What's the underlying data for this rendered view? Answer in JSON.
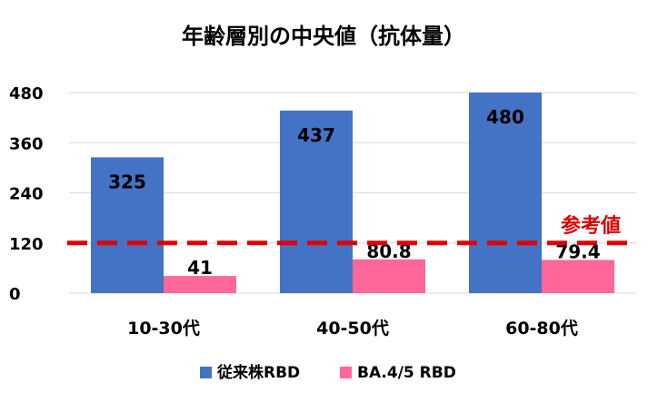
{
  "chart_data": {
    "type": "bar",
    "title": "年齢層別の中央値（抗体量）",
    "categories": [
      "10-30代",
      "40-50代",
      "60-80代"
    ],
    "series": [
      {
        "name": "従来株RBD",
        "values": [
          325,
          437,
          480
        ],
        "color": "#4472C4"
      },
      {
        "name": "BA.4/5 RBD",
        "values": [
          41,
          80.8,
          79.4
        ],
        "color": "#FF6699"
      }
    ],
    "data_labels": [
      [
        "325",
        "437",
        "480"
      ],
      [
        "41",
        "80.8",
        "79.4"
      ]
    ],
    "yticks": [
      "0",
      "120",
      "240",
      "360",
      "480"
    ],
    "ylim": [
      0,
      480
    ],
    "grid": true,
    "legend_position": "bottom",
    "reference_line": {
      "value": 120,
      "label": "参考値",
      "color": "#E00000",
      "style": "dashed"
    }
  }
}
